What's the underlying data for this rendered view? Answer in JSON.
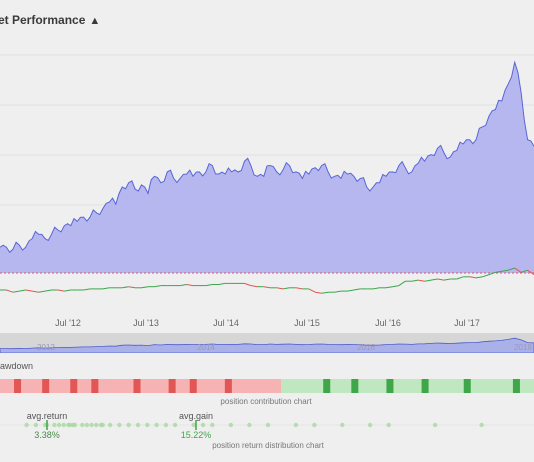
{
  "header": {
    "title": "et Performance",
    "warning_icon": "warning-triangle-icon"
  },
  "colors": {
    "area_fill": "#b3b3ef",
    "area_line": "#5765d6",
    "up_line": "#3aa64a",
    "down_line": "#e05555",
    "baseline_dash": "#e05555",
    "nav_fill": "#aab0e8",
    "nav_line": "#4d5ad0",
    "heat_neg": "#f7b3b3",
    "heat_neg_strong": "#e25656",
    "heat_pos": "#c0e8c0",
    "heat_pos_strong": "#3fa64a",
    "dot_color": "#a8d8a0",
    "dot_marker": "#3fa64a"
  },
  "xaxis": {
    "ticks": [
      "Jul '12",
      "Jul '13",
      "Jul '14",
      "Jul '15",
      "Jul '16",
      "Jul '17"
    ]
  },
  "navigator": {
    "year_labels": [
      "2012",
      "2014",
      "2016",
      "2018"
    ]
  },
  "drawdown": {
    "label": "rawdown"
  },
  "contribution": {
    "caption": "position contribution chart"
  },
  "distribution": {
    "caption": "position return distribution chart",
    "avg_return": {
      "label": "avg.return",
      "value": "3.38%"
    },
    "avg_gain": {
      "label": "avg.gain",
      "value": "15.22%"
    }
  },
  "chart_data": {
    "type": "area",
    "series": [
      {
        "values": [
          0.12,
          0.12,
          0.11,
          0.13,
          0.12,
          0.16,
          0.18,
          0.16,
          0.18,
          0.2,
          0.22,
          0.22,
          0.24,
          0.26,
          0.26,
          0.28,
          0.3,
          0.33,
          0.32,
          0.4,
          0.42,
          0.39,
          0.41,
          0.37,
          0.45,
          0.42,
          0.47,
          0.44,
          0.44,
          0.46,
          0.45,
          0.47,
          0.47,
          0.5,
          0.46,
          0.46,
          0.47,
          0.47,
          0.52,
          0.5,
          0.45,
          0.45,
          0.5,
          0.47,
          0.48,
          0.5,
          0.47,
          0.44,
          0.46,
          0.49,
          0.5,
          0.47,
          0.45,
          0.44,
          0.46,
          0.45,
          0.44,
          0.4,
          0.4,
          0.42,
          0.45,
          0.47,
          0.5,
          0.49,
          0.47,
          0.51,
          0.52,
          0.55,
          0.58,
          0.56,
          0.54,
          0.57,
          0.6,
          0.62,
          0.62,
          0.68,
          0.73,
          0.76,
          0.8,
          0.88,
          0.98,
          0.84,
          0.62,
          0.59
        ]
      },
      {
        "values": [
          0,
          0,
          -0.01,
          -0.005,
          0,
          -0.005,
          -0.01,
          -0.005,
          0,
          0,
          -0.005,
          0,
          0,
          0,
          0.005,
          0.005,
          0.005,
          0.01,
          0.01,
          0.01,
          0.015,
          0.01,
          0.01,
          0.015,
          0.015,
          0.02,
          0.02,
          0.02,
          0.02,
          0.025,
          0.02,
          0.02,
          0.02,
          0.025,
          0.025,
          0.03,
          0.03,
          0.03,
          0.03,
          0.02,
          0.015,
          0.015,
          0.01,
          0.01,
          0.005,
          0.01,
          0.01,
          0.005,
          0.005,
          -0.01,
          -0.015,
          -0.01,
          -0.01,
          -0.005,
          -0.005,
          0,
          0.005,
          0.005,
          0.005,
          0.01,
          0.01,
          0.015,
          0.02,
          0.04,
          0.04,
          0.045,
          0.04,
          0.045,
          0.05,
          0.045,
          0.05,
          0.05,
          0.06,
          0.06,
          0.055,
          0.06,
          0.07,
          0.08,
          0.085,
          0.09,
          0.1,
          0.08,
          0.09,
          0.07
        ]
      }
    ],
    "xaxis_ticks": [
      "Jul '12",
      "Jul '13",
      "Jul '14",
      "Jul '15",
      "Jul '16",
      "Jul '17"
    ]
  },
  "heatmap_bins": [
    -1,
    -1,
    -2,
    -1,
    -1,
    -1,
    -2,
    -1,
    -1,
    -1,
    -2,
    -1,
    -1,
    -2,
    -1,
    -1,
    -1,
    -1,
    -1,
    -2,
    -1,
    -1,
    -1,
    -1,
    -2,
    -1,
    -1,
    -2,
    -1,
    -1,
    -1,
    -1,
    -2,
    -1,
    -1,
    -1,
    -1,
    -1,
    -1,
    -1,
    1,
    1,
    1,
    1,
    1,
    1,
    2,
    1,
    1,
    1,
    2,
    1,
    1,
    1,
    1,
    2,
    1,
    1,
    1,
    1,
    2,
    1,
    1,
    1,
    1,
    1,
    2,
    1,
    1,
    1,
    1,
    1,
    1,
    2,
    1,
    1
  ],
  "dist_dots": [
    -4,
    -3,
    -2,
    -1.8,
    -1,
    -0.5,
    0,
    0.5,
    0.7,
    1,
    1.2,
    2,
    2.5,
    3,
    3.5,
    4,
    4.2,
    5,
    6,
    7,
    8,
    9,
    10,
    11,
    12,
    14,
    15,
    16,
    18,
    20,
    22,
    25,
    27,
    30,
    33,
    35,
    40,
    45
  ]
}
